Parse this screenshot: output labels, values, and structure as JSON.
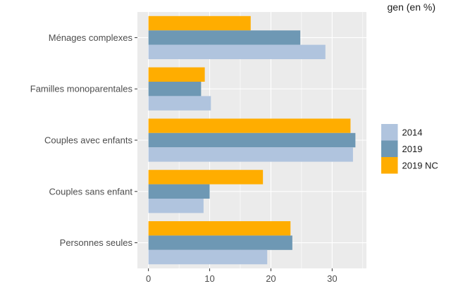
{
  "chart_data": {
    "type": "bar",
    "orientation": "horizontal",
    "title": "gen (en %)",
    "xlabel": "",
    "ylabel": "",
    "categories": [
      "Ménages complexes",
      "Familles monoparentales",
      "Couples avec enfants",
      "Couples sans enfant",
      "Personnes seules"
    ],
    "series": [
      {
        "name": "2014",
        "color": "#b0c4de",
        "values": [
          28.9,
          10.2,
          33.4,
          9.0,
          19.4
        ]
      },
      {
        "name": "2019",
        "color": "#6e98b4",
        "values": [
          24.8,
          8.6,
          33.8,
          10.0,
          23.5
        ]
      },
      {
        "name": "2019 NC",
        "color": "#ffad00",
        "values": [
          16.7,
          9.2,
          33.0,
          18.7,
          23.2
        ]
      }
    ],
    "xlim": [
      -1.8,
      35.6
    ],
    "xticks": [
      0,
      10,
      20,
      30
    ],
    "grid": true,
    "legend_position": "right"
  }
}
